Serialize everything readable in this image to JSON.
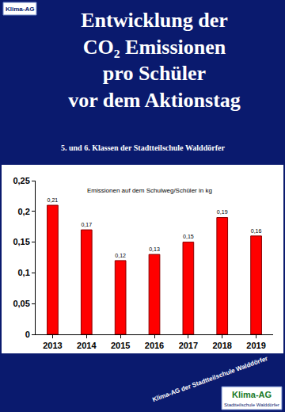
{
  "chart_data": {
    "type": "bar",
    "title": "Entwicklung der CO₂ Emissionen pro Schüler vor dem Aktionstag",
    "subtitle": "5. und 6. Klassen der Stadtteilschule Walddörfer",
    "categories": [
      "2013",
      "2014",
      "2015",
      "2016",
      "2017",
      "2018",
      "2019"
    ],
    "values": [
      0.21,
      0.17,
      0.12,
      0.13,
      0.15,
      0.19,
      0.16
    ],
    "value_labels": [
      "0,21",
      "0,17",
      "0,12",
      "0,13",
      "0,15",
      "0,19",
      "0,16"
    ],
    "data_labels": true,
    "color": "#ff0000",
    "ylim": [
      0,
      0.25
    ],
    "yticks": [
      0,
      {
        "value": 0.05,
        "label": "0,05"
      },
      {
        "value": 0.1,
        "label": "0,1"
      },
      {
        "value": 0.15,
        "label": "0,15"
      },
      {
        "value": 0.2,
        "label": "0,2"
      },
      {
        "value": 0.25,
        "label": "0,25"
      }
    ],
    "grid": false,
    "annotations": [
      "Emissionen auf dem Schulweg/Schüler in kg",
      "Klima-AG der Stadtteilschule Walddörfer",
      "Klima-AG",
      "Klima-AG",
      "Stadtteilschule Walddörfer"
    ]
  }
}
